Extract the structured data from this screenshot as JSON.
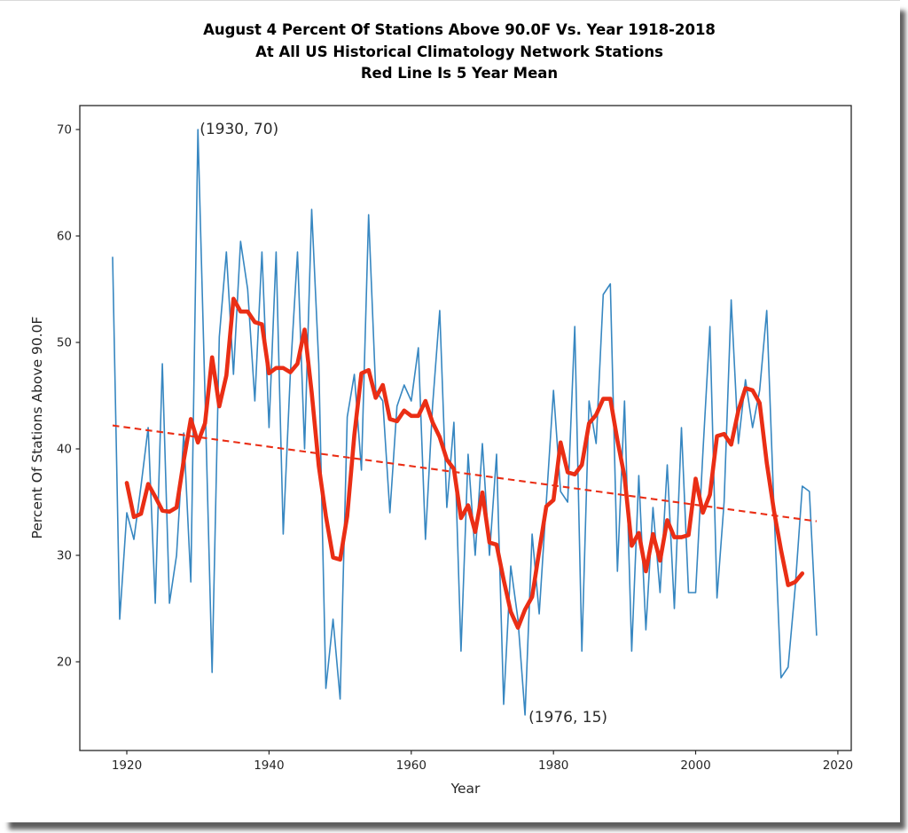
{
  "figure": {
    "title_lines": [
      "August 4 Percent Of Stations Above 90.0F Vs. Year 1918-2018",
      "At All US Historical Climatology Network Stations",
      "Red Line Is 5 Year Mean"
    ],
    "colors": {
      "annual_line": "#3787c1",
      "mean_line": "#ea2e15",
      "trend_line": "#ea2e15",
      "spine": "#262626",
      "tick_text": "#262626",
      "title_text": "#000000",
      "background": "#ffffff",
      "shadow": "#3a3a3a"
    }
  },
  "chart_data": {
    "type": "line",
    "title": "August 4 Percent Of Stations Above 90.0F Vs. Year 1918-2018 At All US Historical Climatology Network Stations, Red Line Is 5 Year Mean",
    "xlabel": "Year",
    "ylabel": "Percent Of Stations Above 90.0F",
    "x_ticks": [
      1920,
      1940,
      1960,
      1980,
      2000,
      2020
    ],
    "y_ticks": [
      20,
      30,
      40,
      50,
      60,
      70
    ],
    "xlim": [
      1913.39,
      2021.88
    ],
    "ylim": [
      11.67,
      72.25
    ],
    "grid": false,
    "legend": "none",
    "series": [
      {
        "name": "annual_percent_above_90F",
        "style": "solid",
        "start_year": 1918,
        "values": [
          58,
          24,
          34,
          31.5,
          36.5,
          42,
          25.5,
          48,
          25.5,
          30,
          41.5,
          27.5,
          70,
          45,
          19,
          50.5,
          58.5,
          47,
          59.5,
          55,
          44.5,
          58.5,
          42,
          58.5,
          32,
          47,
          58.5,
          40,
          62.5,
          48,
          17.5,
          24,
          16.5,
          43,
          47,
          38,
          62,
          45.5,
          44.5,
          34,
          44,
          46,
          44.5,
          49.5,
          31.5,
          44,
          53,
          34.5,
          42.5,
          21,
          39.5,
          30,
          40.5,
          30,
          39.5,
          16,
          29,
          24,
          15,
          32,
          24.5,
          35,
          45.5,
          36,
          35,
          51.5,
          21,
          44.5,
          40.5,
          54.5,
          55.5,
          28.5,
          44.5,
          21,
          37.5,
          23,
          34.5,
          26.5,
          38.5,
          25,
          42,
          26.5,
          26.5,
          39.5,
          51.5,
          26,
          35,
          54,
          40.5,
          46.5,
          42,
          45.5,
          53,
          34.5,
          18.5,
          19.5,
          27,
          36.5,
          36,
          22.5
        ]
      },
      {
        "name": "five_year_mean",
        "style": "solid-thick",
        "derived_from": "annual_percent_above_90F",
        "window": 5,
        "centered": true
      },
      {
        "name": "trend",
        "style": "dashed",
        "x": [
          1918,
          2017
        ],
        "y": [
          42.2,
          33.2
        ]
      }
    ],
    "annotations": [
      {
        "text": "(1930, 70)",
        "year": 1930,
        "value": 70
      },
      {
        "text": "(1976, 15)",
        "year": 1976,
        "value": 15
      }
    ]
  }
}
